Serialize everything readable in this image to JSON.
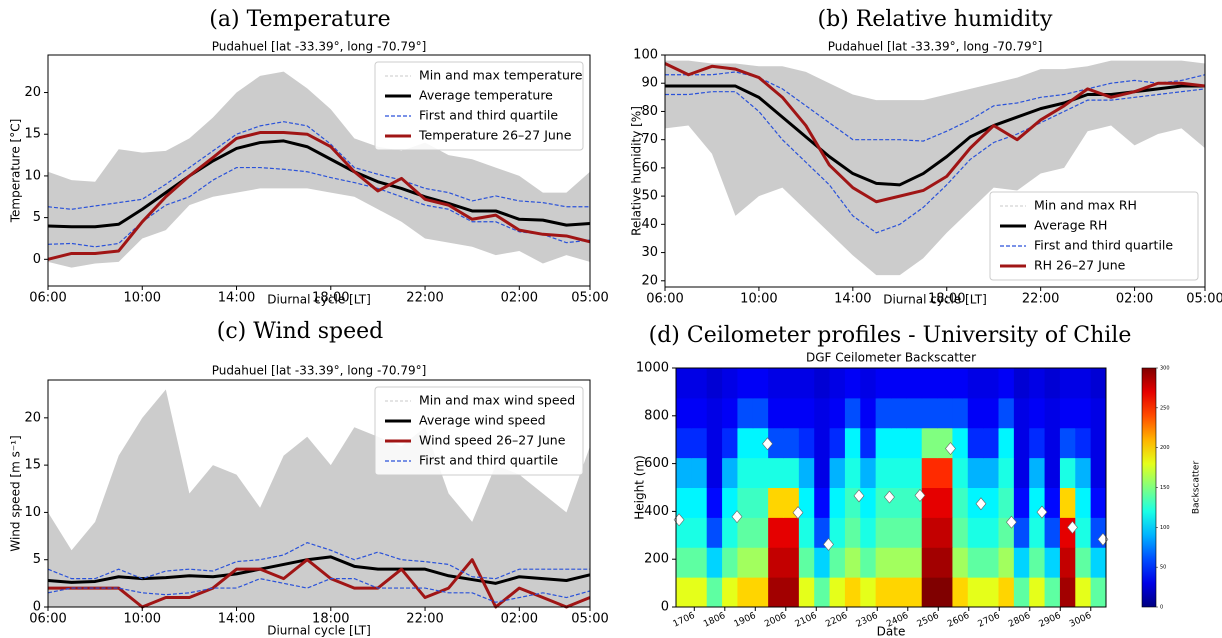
{
  "chart_data": [
    {
      "type": "line",
      "title": "(a) Temperature",
      "subtitle": "Pudahuel [lat -33.39°, long -70.79°]",
      "xlabel": "Diurnal cycle [LT]",
      "ylabel": "Temperature [°C]",
      "categories": [
        "06:00",
        null,
        null,
        null,
        "10:00",
        null,
        null,
        null,
        "14:00",
        null,
        null,
        null,
        "18:00",
        null,
        null,
        null,
        "22:00",
        null,
        null,
        null,
        "02:00",
        null,
        null,
        "05:00"
      ],
      "ylim": [
        -3.2,
        24.5
      ],
      "yticks": [
        0,
        5,
        10,
        15,
        20
      ],
      "legend": "upper right",
      "series": [
        {
          "name": "Min and max temperature",
          "color": "#cccccc",
          "style": "band",
          "low": [
            -0.3,
            -1,
            -0.5,
            -0.3,
            2.5,
            3.5,
            6.5,
            7.5,
            8,
            8.5,
            8.5,
            8.5,
            8,
            7.5,
            6,
            4.5,
            2.5,
            2,
            1.5,
            0.5,
            1,
            -0.5,
            0.5,
            -0.3
          ],
          "high": [
            10.5,
            9.5,
            9.3,
            13.2,
            12.8,
            13,
            14.5,
            17,
            20,
            22,
            22.5,
            20.5,
            18,
            14.5,
            13.5,
            13,
            14,
            12.5,
            12,
            11,
            10,
            8,
            8,
            10.5
          ]
        },
        {
          "name": "Average temperature",
          "color": "#000000",
          "style": "solid",
          "values": [
            4,
            3.9,
            3.9,
            4.2,
            6,
            8,
            10,
            11.8,
            13.3,
            14,
            14.2,
            13.5,
            12,
            10.5,
            9.3,
            8.5,
            7.5,
            6.7,
            5.8,
            5.8,
            4.8,
            4.7,
            4.1,
            4.3
          ]
        },
        {
          "name": "First and third quartile",
          "color": "#2a52d9",
          "style": "dashed",
          "low": [
            1.8,
            1.9,
            1.5,
            1.9,
            4.5,
            6.5,
            7.5,
            9.5,
            11,
            11,
            10.8,
            10.5,
            9.8,
            9.2,
            8.5,
            7.5,
            6.5,
            6,
            4.5,
            4.5,
            3.3,
            3,
            2,
            2.3
          ],
          "high": [
            6.3,
            6,
            6.4,
            6.8,
            7.2,
            9,
            11,
            13,
            15,
            16,
            16.5,
            16,
            13.8,
            11,
            10.2,
            9.5,
            8.5,
            8,
            7,
            7.6,
            7,
            6.8,
            6.3,
            6.3
          ]
        },
        {
          "name": "Temperature 26–27 June",
          "color": "#a01515",
          "style": "solid",
          "values": [
            0,
            0.7,
            0.7,
            1,
            4.5,
            7.5,
            10,
            12.2,
            14.5,
            15.2,
            15.2,
            15,
            13.5,
            10.5,
            8.2,
            9.7,
            7.2,
            6.5,
            4.8,
            5.3,
            3.5,
            3,
            2.8,
            2.1
          ]
        }
      ]
    },
    {
      "type": "line",
      "title": "(b) Relative humidity",
      "subtitle": "Pudahuel [lat -33.39°, long -70.79°]",
      "xlabel": "Diurnal cycle [LT]",
      "ylabel": "Relative humidity [%]",
      "categories": [
        "06:00",
        null,
        null,
        null,
        "10:00",
        null,
        null,
        null,
        "14:00",
        null,
        null,
        null,
        "18:00",
        null,
        null,
        null,
        "22:00",
        null,
        null,
        null,
        "02:00",
        null,
        null,
        "05:00"
      ],
      "ylim": [
        17.8,
        100
      ],
      "yticks": [
        20,
        30,
        40,
        50,
        60,
        70,
        80,
        90,
        100
      ],
      "legend": "lower right",
      "series": [
        {
          "name": "Min and max RH",
          "color": "#cccccc",
          "style": "band",
          "low": [
            74,
            75,
            65,
            43,
            50,
            53,
            45,
            37,
            29,
            22,
            22,
            28,
            37,
            45,
            53,
            52,
            58,
            60,
            73,
            75,
            68,
            72,
            74,
            67
          ],
          "high": [
            98,
            98,
            97,
            97,
            96,
            96,
            94,
            90,
            86,
            84,
            84,
            84,
            86,
            88,
            90,
            92,
            95,
            95,
            96,
            98,
            98,
            98,
            98,
            97
          ]
        },
        {
          "name": "Average RH",
          "color": "#000000",
          "style": "solid",
          "values": [
            89,
            89,
            89,
            89,
            85,
            78,
            71,
            64,
            58,
            54.5,
            54,
            58,
            64,
            71,
            75,
            78,
            81,
            83,
            86,
            86,
            87,
            88,
            89,
            89
          ]
        },
        {
          "name": "First and third quartile",
          "color": "#2a52d9",
          "style": "dashed",
          "low": [
            86,
            86,
            87,
            87,
            80,
            70,
            62,
            54,
            43,
            37,
            40,
            46,
            54,
            63,
            69,
            72,
            76,
            80,
            84,
            84,
            85,
            86,
            87,
            88
          ],
          "high": [
            93,
            93,
            93,
            94,
            92,
            88,
            82,
            76,
            70,
            70,
            70,
            69.5,
            73,
            77,
            82,
            83,
            85,
            86,
            88,
            90,
            91,
            90,
            91,
            93
          ]
        },
        {
          "name": "RH 26–27 June",
          "color": "#a01515",
          "style": "solid",
          "values": [
            97,
            93,
            96,
            95,
            92,
            85,
            75,
            61,
            53,
            48,
            50,
            52,
            57,
            67,
            75,
            70,
            77,
            82,
            88,
            85,
            87,
            90,
            90,
            89
          ]
        }
      ]
    },
    {
      "type": "line",
      "title": "(c) Wind speed",
      "subtitle": "Pudahuel [lat -33.39°, long -70.79°]",
      "xlabel": "Diurnal cycle [LT]",
      "ylabel": "Wind speed [m s⁻¹]",
      "categories": [
        "06:00",
        null,
        null,
        null,
        "10:00",
        null,
        null,
        null,
        "14:00",
        null,
        null,
        null,
        "18:00",
        null,
        null,
        null,
        "22:00",
        null,
        null,
        null,
        "02:00",
        null,
        null,
        "05:00"
      ],
      "ylim": [
        0,
        24
      ],
      "yticks": [
        0,
        5,
        10,
        15,
        20
      ],
      "legend": "upper right",
      "series": [
        {
          "name": "Min and max wind speed",
          "color": "#cccccc",
          "style": "band",
          "low": [
            0,
            0,
            0,
            0,
            0,
            0,
            0,
            0,
            0,
            0,
            0,
            0,
            0,
            0,
            0,
            0,
            0,
            0,
            0,
            0,
            0,
            0,
            0,
            0
          ],
          "high": [
            10,
            6,
            9,
            16,
            20,
            23,
            12,
            15,
            14,
            10.5,
            16,
            18,
            15,
            19,
            18,
            17,
            19,
            12,
            9,
            15,
            14,
            12,
            10,
            17
          ]
        },
        {
          "name": "Average wind speed",
          "color": "#000000",
          "style": "solid",
          "values": [
            2.8,
            2.6,
            2.7,
            3.2,
            3,
            3.1,
            3.3,
            3.2,
            3.5,
            4,
            4.5,
            5,
            5.3,
            4.3,
            4,
            4,
            4,
            3.3,
            2.9,
            2.5,
            3.2,
            3,
            2.8,
            3.4
          ]
        },
        {
          "name": "Wind speed 26–27 June",
          "color": "#a01515",
          "style": "solid",
          "values": [
            2,
            2,
            2,
            2,
            0,
            1,
            1,
            2,
            4,
            4,
            3,
            5,
            3,
            2,
            2,
            4,
            1,
            2,
            5,
            0,
            2,
            1,
            0,
            1
          ]
        },
        {
          "name": "First and third quartile",
          "color": "#2a52d9",
          "style": "dashed",
          "low": [
            1.5,
            2,
            2,
            2,
            1.5,
            1.3,
            1.5,
            2,
            2,
            3,
            2.5,
            2,
            3,
            3,
            2,
            2,
            2,
            1.5,
            1.5,
            0.5,
            1,
            1.5,
            1,
            1.7
          ],
          "high": [
            4,
            3,
            3,
            4,
            3,
            3.8,
            4,
            3.8,
            4.8,
            5,
            5.5,
            6.8,
            6,
            5,
            5.8,
            5,
            4.8,
            4.5,
            3.2,
            3,
            4,
            4,
            4,
            4
          ]
        }
      ]
    },
    {
      "type": "heatmap",
      "title": "(d) Ceilometer profiles - University of Chile",
      "subtitle": "DGF Ceilometer Backscatter",
      "xlabel": "Date",
      "ylabel": "Height (m)",
      "cmap": "jet",
      "zlim": [
        0,
        300
      ],
      "colorbar_label": "Backscatter",
      "colorbar_ticks": [
        0,
        50,
        100,
        150,
        200,
        250,
        300
      ],
      "xlim": [
        -0.1,
        14
      ],
      "ylim": [
        0,
        1000
      ],
      "yticks": [
        0,
        200,
        400,
        600,
        800,
        1000
      ],
      "xticks": [
        {
          "value": 0.5,
          "label": "1706"
        },
        {
          "value": 1.5,
          "label": "1806"
        },
        {
          "value": 2.5,
          "label": "1906"
        },
        {
          "value": 3.5,
          "label": "2006"
        },
        {
          "value": 4.5,
          "label": "2106"
        },
        {
          "value": 5.5,
          "label": "2206"
        },
        {
          "value": 6.5,
          "label": "2306"
        },
        {
          "value": 7.5,
          "label": "2406"
        },
        {
          "value": 8.5,
          "label": "2506"
        },
        {
          "value": 9.5,
          "label": "2606"
        },
        {
          "value": 10.5,
          "label": "2706"
        },
        {
          "value": 11.5,
          "label": "2806"
        },
        {
          "value": 12.5,
          "label": "2906"
        },
        {
          "value": 13.5,
          "label": "3006"
        }
      ],
      "z": [
        [
          180,
          180,
          140,
          180,
          200,
          200,
          290,
          290,
          180,
          140,
          180,
          200,
          180,
          200,
          200,
          200,
          300,
          300,
          200,
          180,
          180,
          200,
          140,
          180,
          140,
          290,
          180,
          140
        ],
        [
          140,
          140,
          100,
          140,
          160,
          160,
          280,
          280,
          140,
          100,
          140,
          160,
          140,
          160,
          160,
          160,
          290,
          290,
          160,
          140,
          140,
          160,
          100,
          140,
          100,
          280,
          140,
          100
        ],
        [
          120,
          120,
          60,
          120,
          140,
          140,
          270,
          270,
          120,
          60,
          120,
          140,
          120,
          140,
          140,
          140,
          280,
          280,
          140,
          120,
          120,
          140,
          60,
          120,
          60,
          270,
          120,
          60
        ],
        [
          110,
          110,
          40,
          110,
          130,
          130,
          200,
          200,
          110,
          40,
          110,
          130,
          110,
          130,
          130,
          130,
          270,
          270,
          130,
          110,
          110,
          130,
          40,
          110,
          40,
          200,
          110,
          40
        ],
        [
          90,
          90,
          30,
          90,
          120,
          120,
          120,
          120,
          90,
          30,
          90,
          120,
          90,
          120,
          120,
          120,
          250,
          250,
          120,
          90,
          90,
          120,
          30,
          90,
          30,
          120,
          90,
          30
        ],
        [
          50,
          50,
          30,
          50,
          110,
          110,
          60,
          60,
          50,
          30,
          50,
          110,
          50,
          110,
          110,
          110,
          150,
          150,
          110,
          50,
          50,
          110,
          30,
          50,
          30,
          60,
          50,
          30
        ],
        [
          35,
          35,
          30,
          35,
          60,
          60,
          35,
          35,
          35,
          30,
          35,
          60,
          35,
          60,
          60,
          60,
          60,
          60,
          60,
          35,
          35,
          60,
          30,
          35,
          30,
          35,
          35,
          30
        ],
        [
          30,
          30,
          25,
          30,
          35,
          35,
          30,
          30,
          30,
          25,
          30,
          35,
          30,
          35,
          35,
          35,
          35,
          35,
          35,
          30,
          30,
          35,
          25,
          30,
          25,
          30,
          30,
          25
        ]
      ],
      "points": {
        "color": "#ffffff",
        "x": [
          0,
          1.9,
          2.9,
          3.9,
          4.9,
          5.9,
          6.9,
          7.9,
          8.9,
          9.9,
          10.9,
          11.9,
          12.9,
          13.9
        ],
        "y": [
          365,
          378,
          683,
          395,
          262,
          465,
          460,
          467,
          663,
          432,
          355,
          397,
          333,
          283
        ]
      }
    }
  ]
}
